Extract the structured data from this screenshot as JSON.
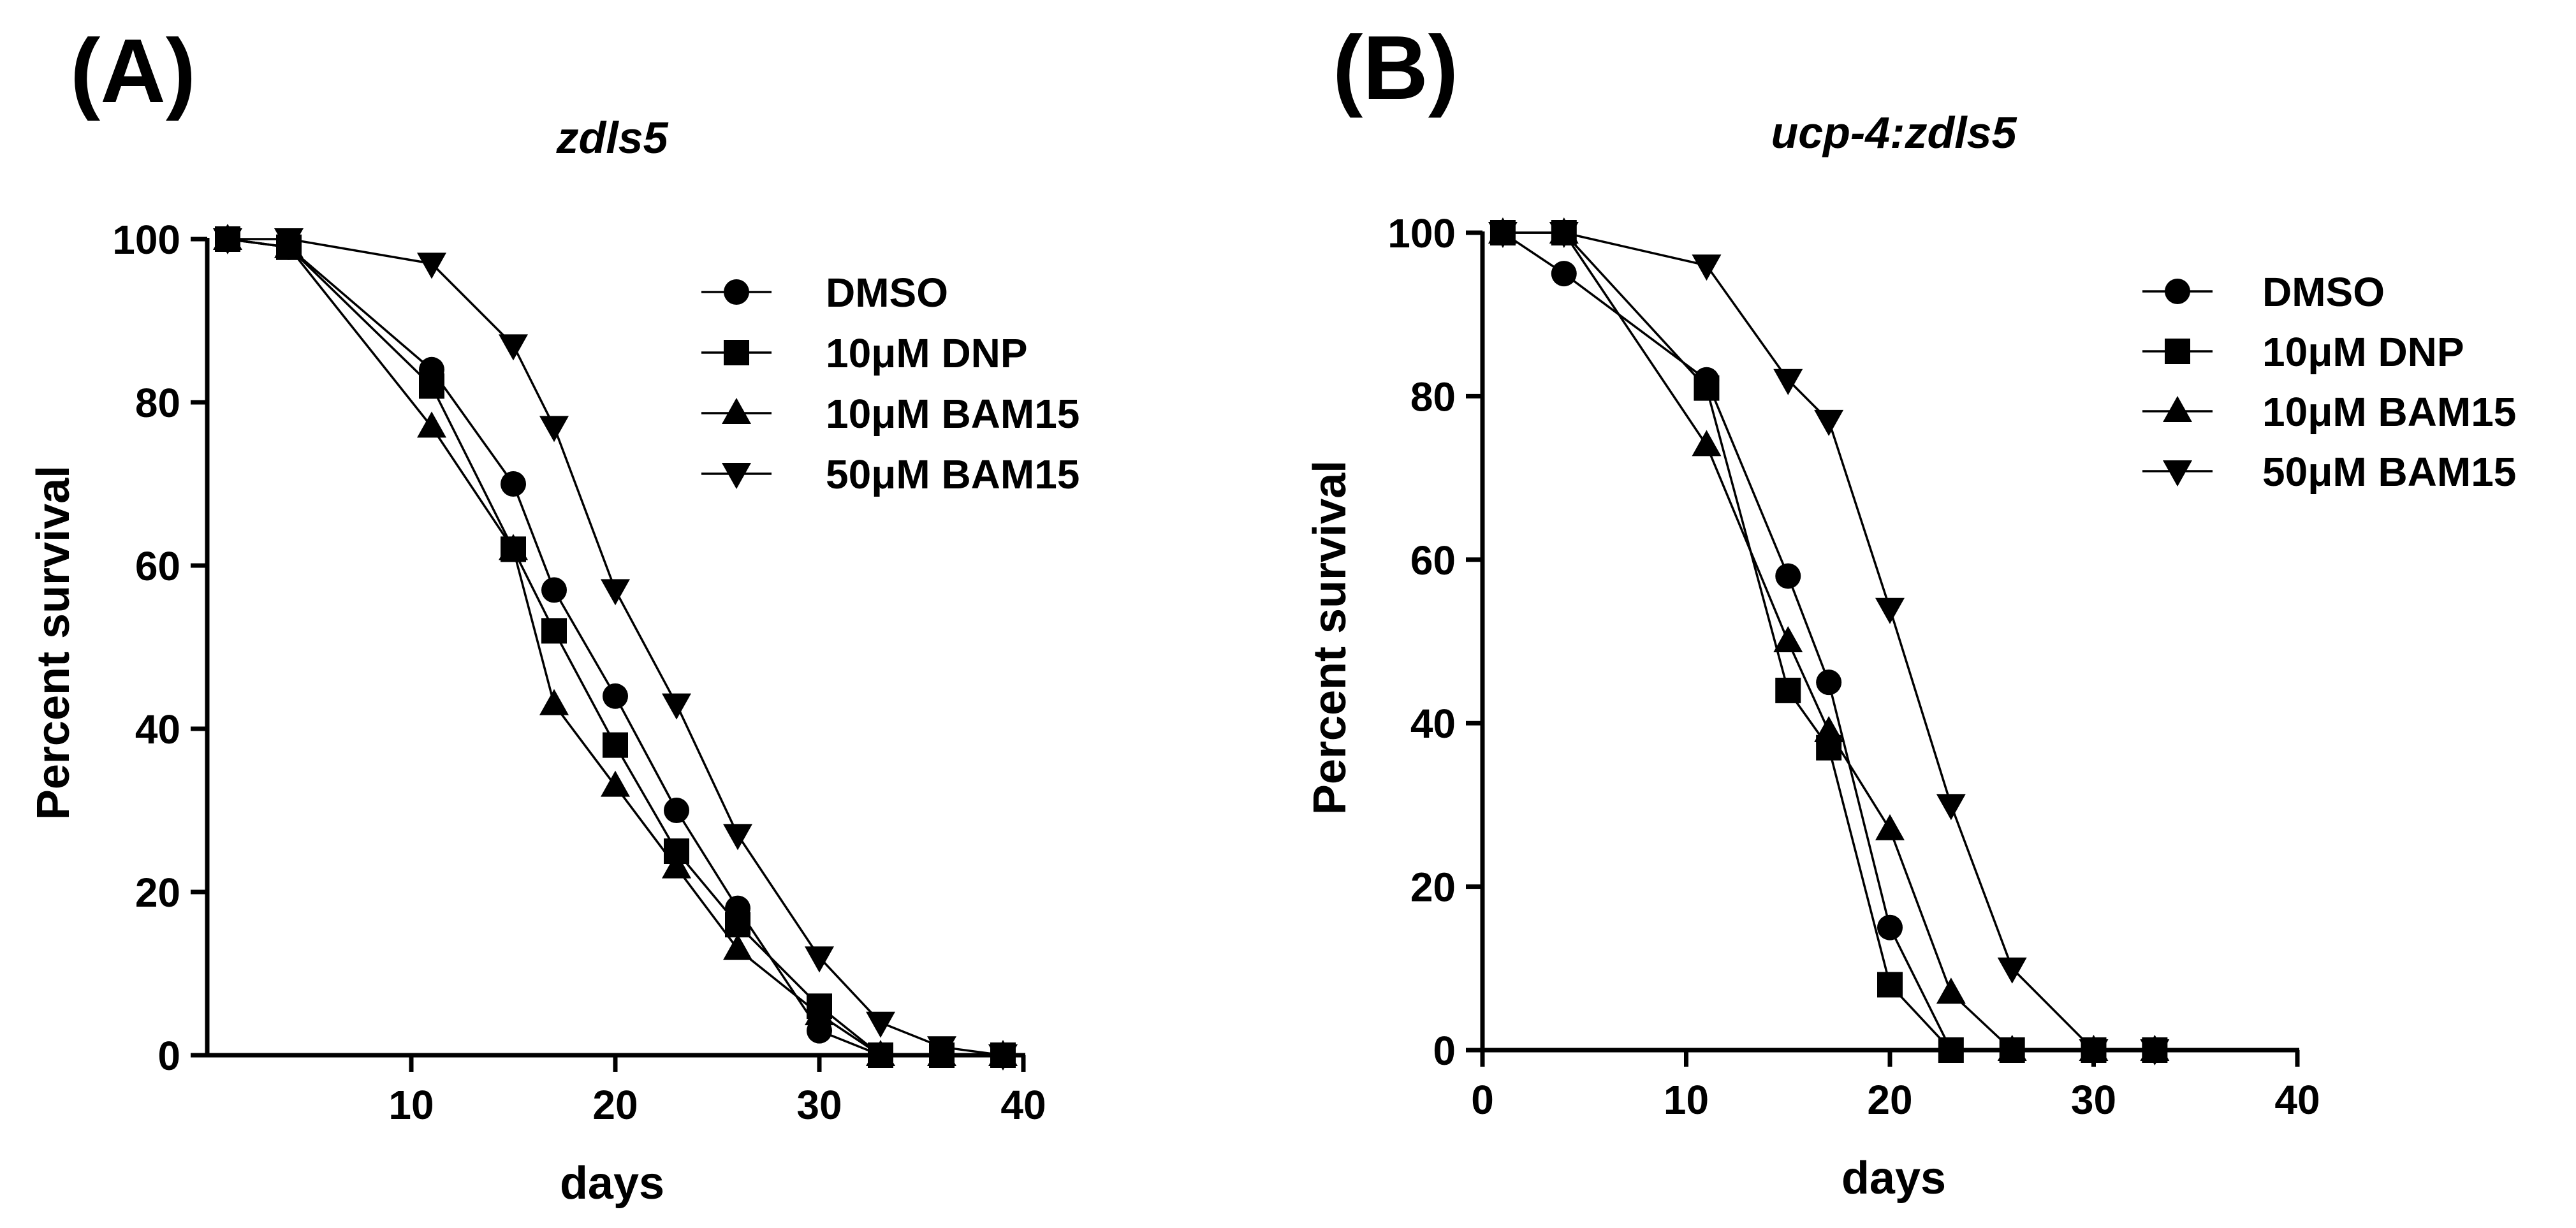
{
  "chart_data": [
    {
      "panel": "(A)",
      "type": "line",
      "title": "zdls5",
      "xlabel": "days",
      "ylabel": "Percent survival",
      "xlim": [
        0,
        40
      ],
      "ylim": [
        0,
        100
      ],
      "x_ticks": [
        10,
        20,
        30,
        40
      ],
      "y_ticks": [
        0,
        20,
        40,
        60,
        80,
        100
      ],
      "legend": "top-right",
      "series": [
        {
          "name": "DMSO",
          "marker": "circle",
          "x": [
            1,
            4,
            11,
            15,
            17,
            20,
            23,
            26,
            30,
            33,
            36,
            39
          ],
          "y": [
            100,
            99,
            84,
            70,
            57,
            44,
            30,
            18,
            3,
            0,
            0,
            0
          ]
        },
        {
          "name": "10μM DNP",
          "marker": "square",
          "x": [
            1,
            4,
            11,
            15,
            17,
            20,
            23,
            26,
            30,
            33,
            36,
            39
          ],
          "y": [
            100,
            99,
            82,
            62,
            52,
            38,
            25,
            16,
            6,
            0,
            0,
            0
          ]
        },
        {
          "name": "10μM BAM15",
          "marker": "triangle-up",
          "x": [
            1,
            4,
            11,
            15,
            17,
            20,
            23,
            26,
            30,
            33,
            36,
            39
          ],
          "y": [
            100,
            99,
            77,
            62,
            43,
            33,
            23,
            13,
            5,
            0,
            0,
            0
          ]
        },
        {
          "name": "50μM BAM15",
          "marker": "triangle-down",
          "x": [
            1,
            4,
            11,
            15,
            17,
            20,
            23,
            26,
            30,
            33,
            36,
            39
          ],
          "y": [
            100,
            100,
            97,
            87,
            77,
            57,
            43,
            27,
            12,
            4,
            1,
            0
          ]
        }
      ]
    },
    {
      "panel": "(B)",
      "type": "line",
      "title": "ucp-4:zdls5",
      "xlabel": "days",
      "ylabel": "Percent survival",
      "xlim": [
        0,
        40
      ],
      "ylim": [
        0,
        100
      ],
      "x_ticks": [
        0,
        10,
        20,
        30,
        40
      ],
      "y_ticks": [
        0,
        20,
        40,
        60,
        80,
        100
      ],
      "legend": "top-right",
      "series": [
        {
          "name": "DMSO",
          "marker": "circle",
          "x": [
            1,
            4,
            11,
            15,
            17,
            20,
            23,
            26,
            30,
            33
          ],
          "y": [
            100,
            95,
            82,
            58,
            45,
            15,
            0,
            0,
            0,
            0
          ]
        },
        {
          "name": "10μM DNP",
          "marker": "square",
          "x": [
            1,
            4,
            11,
            15,
            17,
            20,
            23,
            26,
            30,
            33
          ],
          "y": [
            100,
            100,
            81,
            44,
            37,
            8,
            0,
            0,
            0,
            0
          ]
        },
        {
          "name": "10μM BAM15",
          "marker": "triangle-up",
          "x": [
            1,
            4,
            11,
            15,
            17,
            20,
            23,
            26,
            30,
            33
          ],
          "y": [
            100,
            100,
            74,
            50,
            39,
            27,
            7,
            0,
            0,
            0
          ]
        },
        {
          "name": "50μM BAM15",
          "marker": "triangle-down",
          "x": [
            1,
            4,
            11,
            15,
            17,
            20,
            23,
            26,
            30,
            33
          ],
          "y": [
            100,
            100,
            96,
            82,
            77,
            54,
            30,
            10,
            0,
            0
          ]
        }
      ]
    }
  ]
}
